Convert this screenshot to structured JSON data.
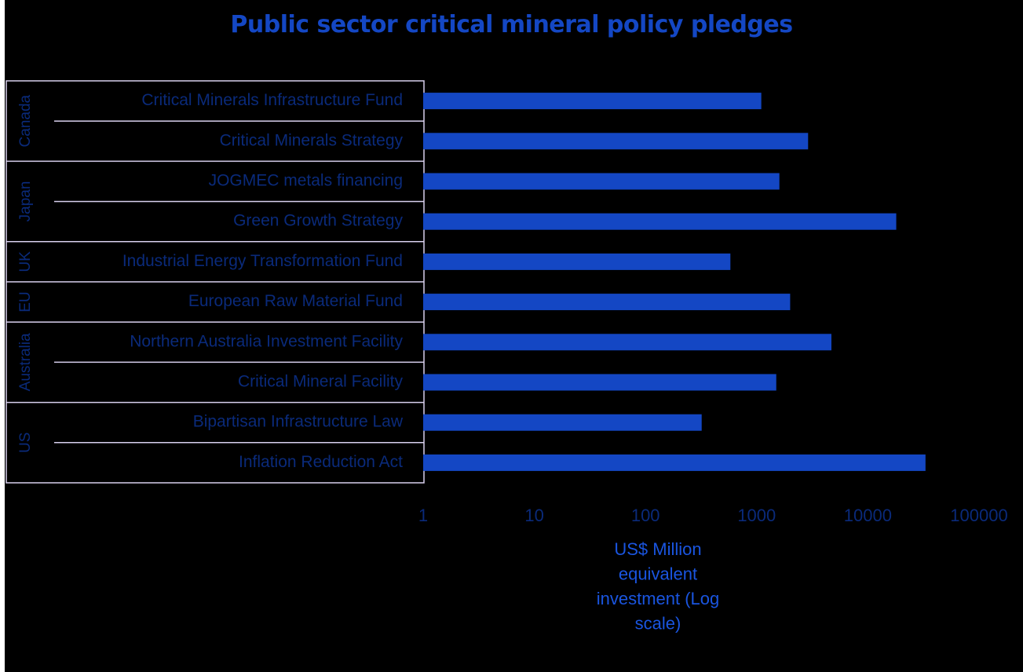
{
  "title": "Public sector critical mineral policy pledges",
  "colors": {
    "background": "#000000",
    "bar": "#1447c4",
    "category_text": "#0a2a7a",
    "tick_text": "#0a2a7a",
    "axis_title": "#1a55e0",
    "table_lines": "#d8d0ee"
  },
  "chart_data": {
    "type": "bar",
    "orientation": "horizontal",
    "x_scale": "log",
    "xlim": [
      1,
      100000
    ],
    "x_ticks": [
      "1",
      "10",
      "100",
      "1000",
      "10000",
      "100000"
    ],
    "xlabel_lines": [
      "US$ Million",
      "equivalent",
      "investment (Log",
      "scale)"
    ],
    "groups": [
      {
        "name": "Canada",
        "start": 0,
        "count": 2
      },
      {
        "name": "Japan",
        "start": 2,
        "count": 2
      },
      {
        "name": "UK",
        "start": 4,
        "count": 1
      },
      {
        "name": "EU",
        "start": 5,
        "count": 1
      },
      {
        "name": "Australia",
        "start": 6,
        "count": 2
      },
      {
        "name": "US",
        "start": 8,
        "count": 2
      }
    ],
    "categories": [
      "Critical Minerals Infrastructure Fund",
      "Critical Minerals Strategy",
      "JOGMEC metals financing",
      "Green Growth Strategy",
      "Industrial Energy Transformation Fund",
      "European Raw Material Fund",
      "Northern Australia Investment Facility",
      "Critical Mineral Facility",
      "Bipartisan Infrastructure Law",
      "Inflation Reduction Act"
    ],
    "values": [
      1100,
      2900,
      1600,
      18000,
      580,
      2000,
      4700,
      1500,
      320,
      33000
    ]
  }
}
